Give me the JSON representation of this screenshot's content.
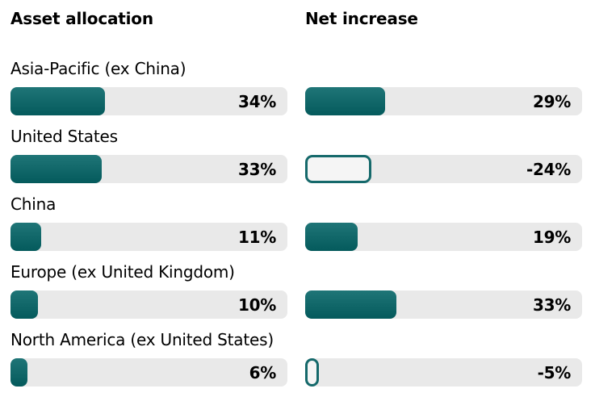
{
  "chart_data": {
    "type": "bar",
    "orientation": "horizontal",
    "categories": [
      "Asia-Pacific (ex China)",
      "United States",
      "China",
      "Europe (ex United Kingdom)",
      "North America (ex United States)"
    ],
    "series": [
      {
        "name": "Asset allocation",
        "values": [
          34,
          33,
          11,
          10,
          6
        ]
      },
      {
        "name": "Net increase",
        "values": [
          29,
          -24,
          19,
          33,
          -5
        ]
      }
    ],
    "value_suffix": "%",
    "xlim": [
      0,
      100
    ],
    "grid": false,
    "legend_position": "column-headers",
    "negative_style": "outlined-hollow-bar",
    "colors": {
      "bar_gradient_top": "#1f7577",
      "bar_gradient_bottom": "#045a5c",
      "negative_border": "#15696b",
      "negative_fill": "#f5f5f5",
      "track": "#e9e9e9",
      "text": "#000000",
      "background": "#ffffff"
    }
  }
}
